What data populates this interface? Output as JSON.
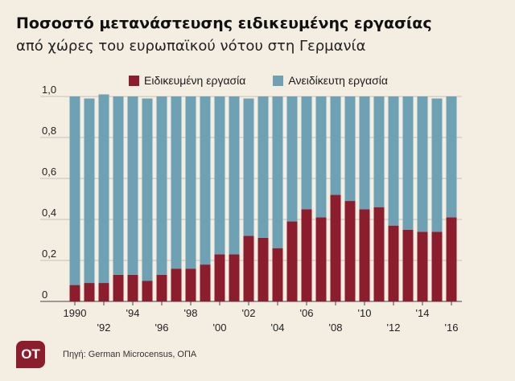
{
  "header": {
    "title": "Ποσοστό μετανάστευσης ειδικευμένης εργασίας",
    "subtitle": "από χώρες του ευρωπαϊκού νότου στη Γερμανία"
  },
  "footer": {
    "logo_text": "OT",
    "source": "Πηγή:  German Microcensus, ΟΠΑ"
  },
  "colors": {
    "skilled": "#8c1d2c",
    "unskilled": "#6ea1b4",
    "background": "#f3ede2"
  },
  "chart_data": {
    "type": "bar",
    "stacked": true,
    "title": "Ποσοστό μετανάστευσης ειδικευμένης εργασίας",
    "subtitle": "από χώρες του ευρωπαϊκού νότου στη Γερμανία",
    "xlabel": "",
    "ylabel": "",
    "ylim": [
      0,
      1.0
    ],
    "yticks": [
      "0",
      "0,2",
      "0,4",
      "0,6",
      "0,8",
      "1,0"
    ],
    "ytick_values": [
      0,
      0.2,
      0.4,
      0.6,
      0.8,
      1.0
    ],
    "grid": "horizontal",
    "legend_position": "top",
    "categories": [
      1990,
      1991,
      1992,
      1993,
      1994,
      1995,
      1996,
      1997,
      1998,
      1999,
      2000,
      2001,
      2002,
      2003,
      2004,
      2005,
      2006,
      2007,
      2008,
      2009,
      2010,
      2011,
      2012,
      2013,
      2014,
      2015,
      2016
    ],
    "xtick_labels": [
      {
        "year": 1990,
        "label": "1990",
        "row": 1
      },
      {
        "year": 1992,
        "label": "'92",
        "row": 2
      },
      {
        "year": 1994,
        "label": "'94",
        "row": 1
      },
      {
        "year": 1996,
        "label": "'96",
        "row": 2
      },
      {
        "year": 1998,
        "label": "'98",
        "row": 1
      },
      {
        "year": 2000,
        "label": "'00",
        "row": 2
      },
      {
        "year": 2002,
        "label": "'02",
        "row": 1
      },
      {
        "year": 2004,
        "label": "'04",
        "row": 2
      },
      {
        "year": 2006,
        "label": "'06",
        "row": 1
      },
      {
        "year": 2008,
        "label": "'08",
        "row": 2
      },
      {
        "year": 2010,
        "label": "'10",
        "row": 1
      },
      {
        "year": 2012,
        "label": "'12",
        "row": 2
      },
      {
        "year": 2014,
        "label": "'14",
        "row": 1
      },
      {
        "year": 2016,
        "label": "'16",
        "row": 2
      }
    ],
    "series": [
      {
        "name": "Ειδικευμένη εργασία",
        "color": "#8c1d2c",
        "values": [
          0.08,
          0.09,
          0.09,
          0.13,
          0.13,
          0.1,
          0.13,
          0.16,
          0.16,
          0.18,
          0.23,
          0.23,
          0.32,
          0.31,
          0.26,
          0.39,
          0.45,
          0.41,
          0.52,
          0.49,
          0.45,
          0.46,
          0.37,
          0.35,
          0.34,
          0.34,
          0.41
        ]
      },
      {
        "name": "Ανειδίκευτη εργασία",
        "color": "#6ea1b4",
        "values": [
          0.92,
          0.9,
          0.92,
          0.87,
          0.87,
          0.89,
          0.87,
          0.84,
          0.84,
          0.82,
          0.77,
          0.77,
          0.67,
          0.69,
          0.74,
          0.61,
          0.55,
          0.59,
          0.48,
          0.51,
          0.55,
          0.54,
          0.63,
          0.65,
          0.66,
          0.65,
          0.59
        ]
      }
    ]
  }
}
